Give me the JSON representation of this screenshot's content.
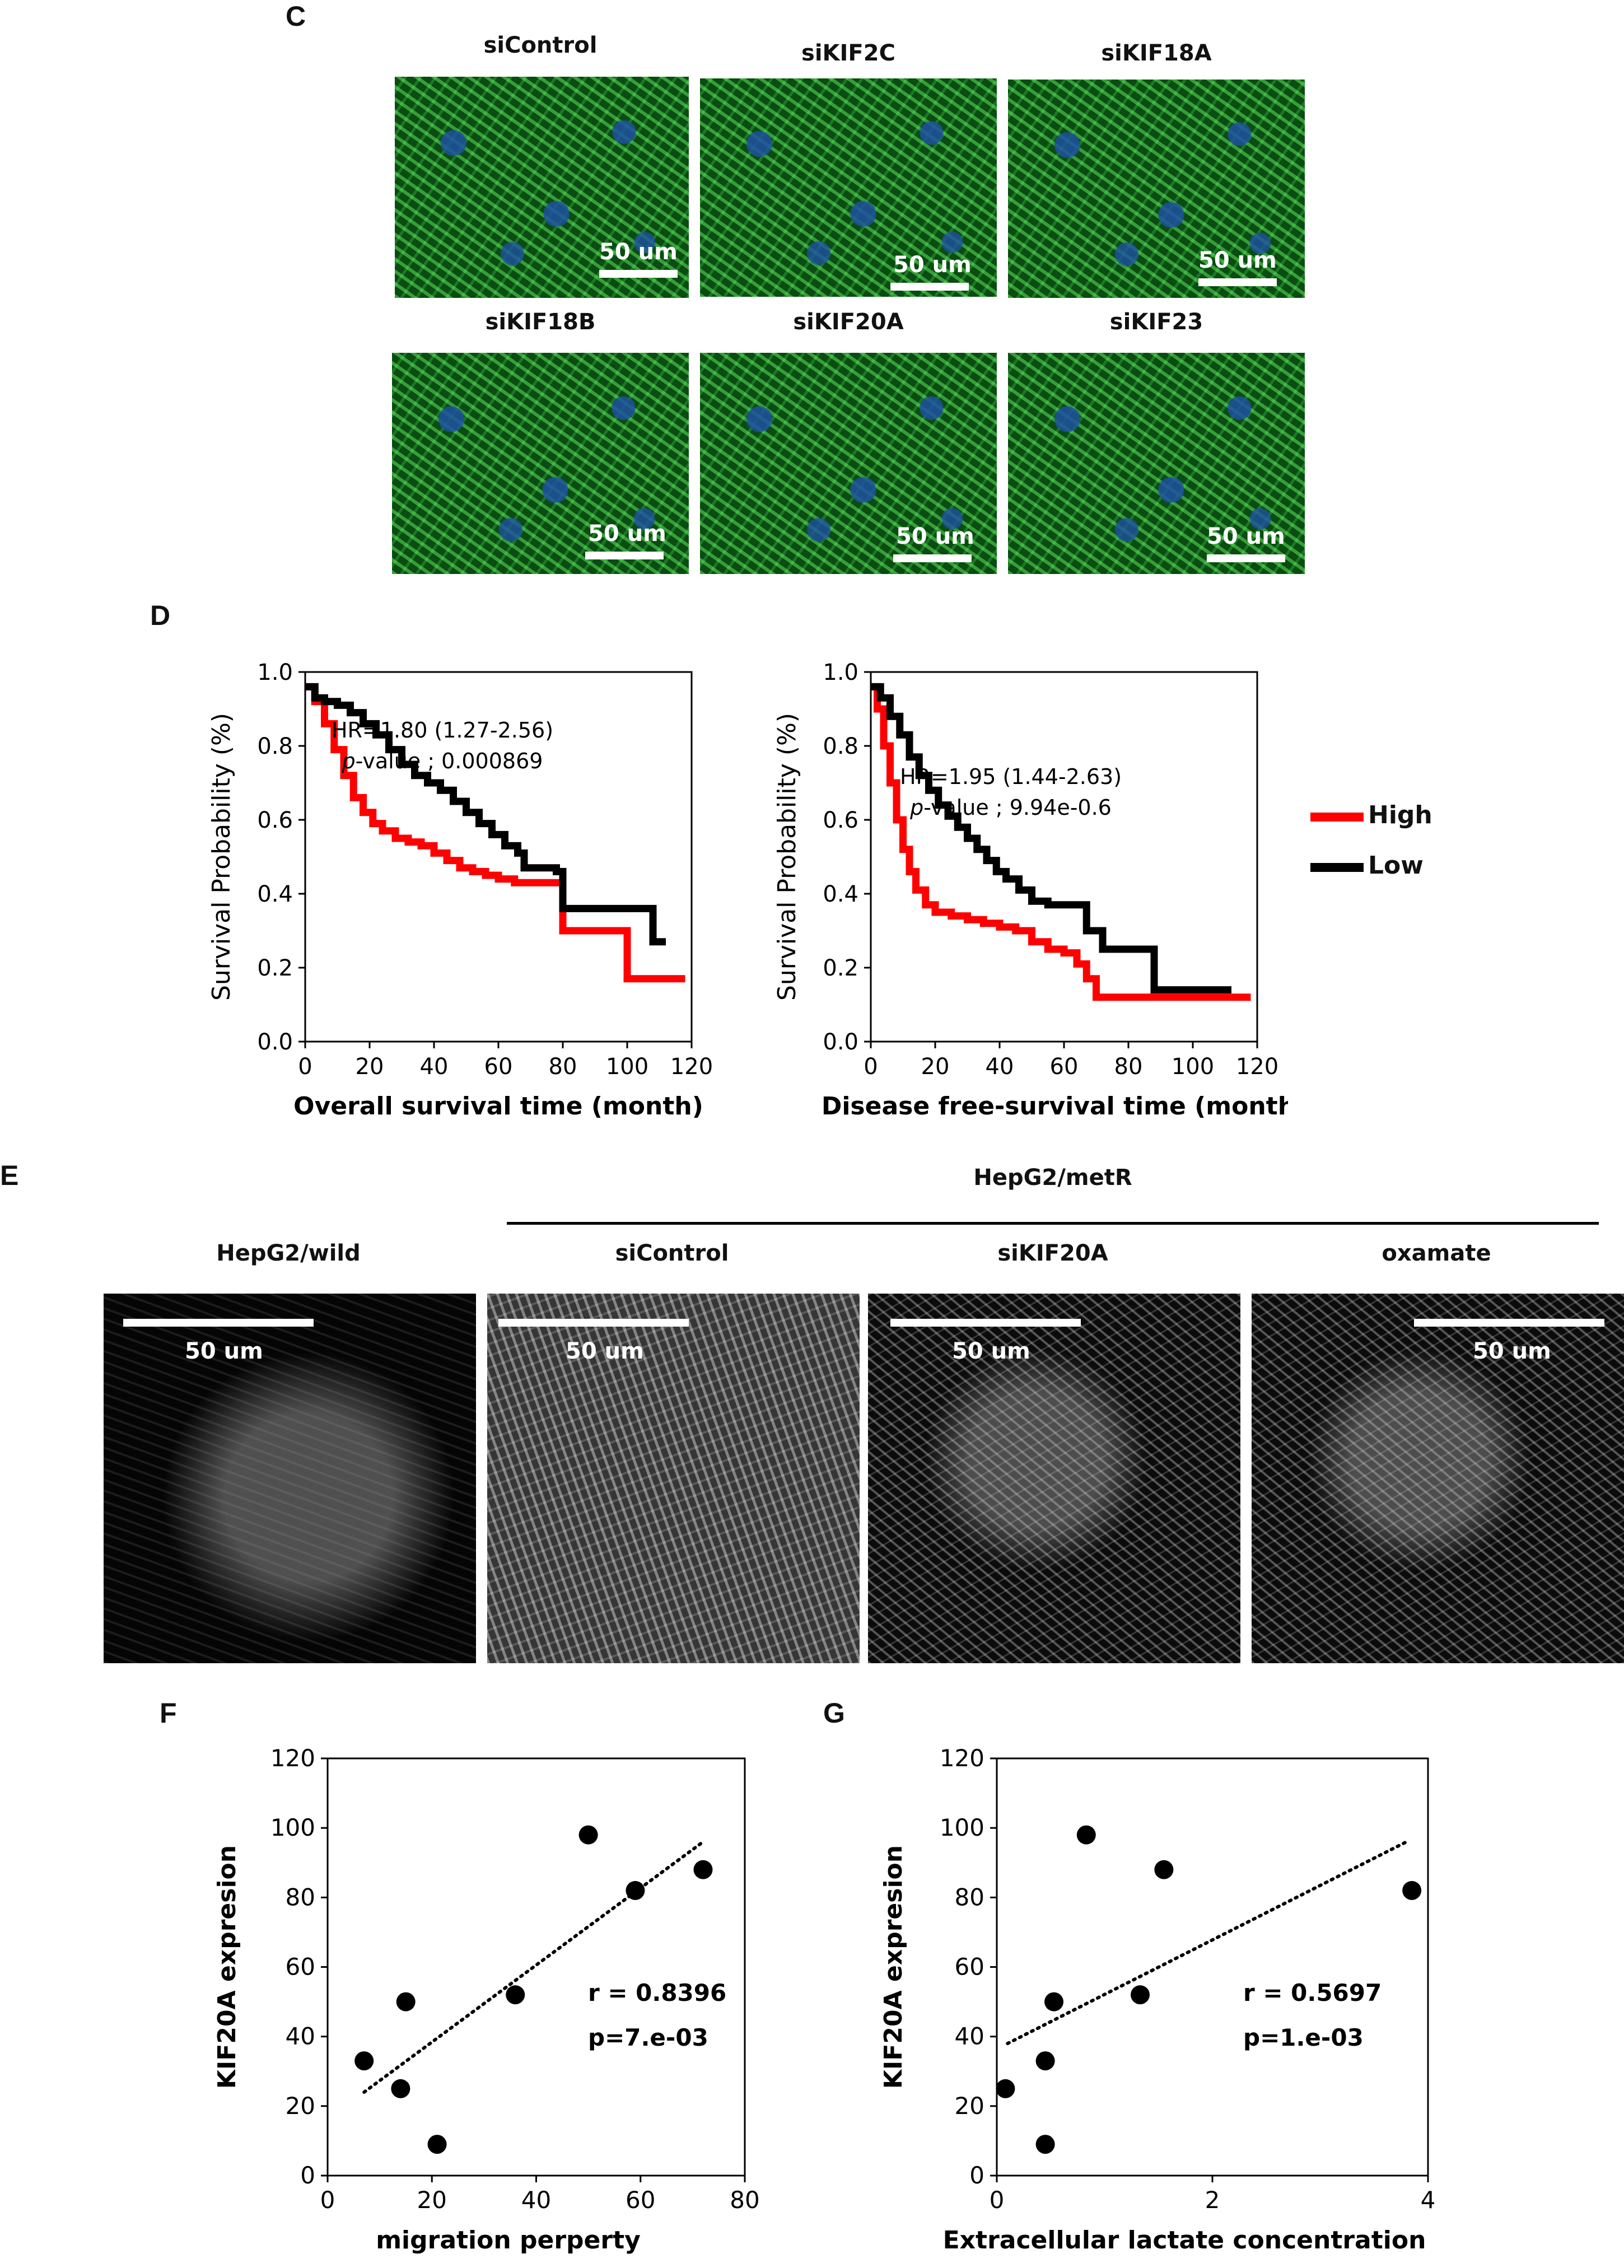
{
  "panels": {
    "c": {
      "letter": "C",
      "labels": [
        "siControl",
        "siKIF2C",
        "siKIF18A",
        "siKIF18B",
        "siKIF20A",
        "siKIF23"
      ],
      "scalebar_text": "50 um"
    },
    "d": {
      "letter": "D",
      "legend": [
        {
          "label": "High",
          "color": "#ff0000"
        },
        {
          "label": "Low",
          "color": "#000000"
        }
      ]
    },
    "e": {
      "letter": "E",
      "group_label": "HepG2/metR",
      "labels": [
        "HepG2/wild",
        "siControl",
        "siKIF20A",
        "oxamate"
      ],
      "scalebar_text": "50 um"
    },
    "f": {
      "letter": "F"
    },
    "g": {
      "letter": "G"
    }
  },
  "chart_data": [
    {
      "id": "d-left",
      "type": "line",
      "xlabel": "Overall survival time (month)",
      "ylabel": "Survival Probability (%)",
      "xlim": [
        0,
        120
      ],
      "ylim": [
        0.0,
        1.0
      ],
      "xticks": [
        0,
        20,
        40,
        60,
        80,
        100,
        120
      ],
      "yticks": [
        0.0,
        0.2,
        0.4,
        0.6,
        0.8,
        1.0
      ],
      "annotation": [
        "HR=1.80 (1.27-2.56)",
        "p-value ; 0.000869"
      ],
      "series": [
        {
          "name": "High",
          "color": "#ff0000",
          "points": [
            [
              0,
              0.96
            ],
            [
              3,
              0.92
            ],
            [
              6,
              0.86
            ],
            [
              9,
              0.79
            ],
            [
              12,
              0.72
            ],
            [
              15,
              0.66
            ],
            [
              18,
              0.62
            ],
            [
              21,
              0.59
            ],
            [
              24,
              0.57
            ],
            [
              28,
              0.55
            ],
            [
              32,
              0.54
            ],
            [
              36,
              0.53
            ],
            [
              40,
              0.51
            ],
            [
              44,
              0.49
            ],
            [
              48,
              0.47
            ],
            [
              52,
              0.46
            ],
            [
              56,
              0.45
            ],
            [
              60,
              0.44
            ],
            [
              65,
              0.43
            ],
            [
              70,
              0.43
            ],
            [
              74,
              0.43
            ],
            [
              78,
              0.43
            ],
            [
              80,
              0.3
            ],
            [
              95,
              0.3
            ],
            [
              100,
              0.17
            ],
            [
              118,
              0.17
            ]
          ]
        },
        {
          "name": "Low",
          "color": "#000000",
          "points": [
            [
              0,
              0.96
            ],
            [
              3,
              0.93
            ],
            [
              6,
              0.92
            ],
            [
              10,
              0.91
            ],
            [
              14,
              0.89
            ],
            [
              18,
              0.86
            ],
            [
              22,
              0.83
            ],
            [
              26,
              0.79
            ],
            [
              30,
              0.75
            ],
            [
              34,
              0.72
            ],
            [
              38,
              0.7
            ],
            [
              42,
              0.68
            ],
            [
              46,
              0.65
            ],
            [
              50,
              0.62
            ],
            [
              54,
              0.59
            ],
            [
              58,
              0.56
            ],
            [
              62,
              0.53
            ],
            [
              66,
              0.51
            ],
            [
              68,
              0.47
            ],
            [
              74,
              0.47
            ],
            [
              78,
              0.46
            ],
            [
              80,
              0.36
            ],
            [
              105,
              0.36
            ],
            [
              108,
              0.27
            ],
            [
              112,
              0.27
            ]
          ]
        }
      ]
    },
    {
      "id": "d-right",
      "type": "line",
      "xlabel": "Disease free-survival time (month)",
      "ylabel": "Survival Probability (%)",
      "xlim": [
        0,
        120
      ],
      "ylim": [
        0.0,
        1.0
      ],
      "xticks": [
        0,
        20,
        40,
        60,
        80,
        100,
        120
      ],
      "yticks": [
        0.0,
        0.2,
        0.4,
        0.6,
        0.8,
        1.0
      ],
      "annotation": [
        "HR=1.95 (1.44-2.63)",
        "p-value ; 9.94e-0.6"
      ],
      "series": [
        {
          "name": "High",
          "color": "#ff0000",
          "points": [
            [
              0,
              0.96
            ],
            [
              2,
              0.9
            ],
            [
              4,
              0.8
            ],
            [
              6,
              0.7
            ],
            [
              8,
              0.6
            ],
            [
              10,
              0.52
            ],
            [
              12,
              0.46
            ],
            [
              14,
              0.41
            ],
            [
              17,
              0.37
            ],
            [
              20,
              0.35
            ],
            [
              25,
              0.34
            ],
            [
              30,
              0.33
            ],
            [
              35,
              0.32
            ],
            [
              40,
              0.31
            ],
            [
              45,
              0.3
            ],
            [
              50,
              0.27
            ],
            [
              55,
              0.25
            ],
            [
              60,
              0.24
            ],
            [
              64,
              0.21
            ],
            [
              67,
              0.17
            ],
            [
              70,
              0.12
            ],
            [
              118,
              0.12
            ]
          ]
        },
        {
          "name": "Low",
          "color": "#000000",
          "points": [
            [
              0,
              0.96
            ],
            [
              3,
              0.93
            ],
            [
              6,
              0.88
            ],
            [
              9,
              0.83
            ],
            [
              12,
              0.77
            ],
            [
              15,
              0.72
            ],
            [
              18,
              0.68
            ],
            [
              21,
              0.64
            ],
            [
              24,
              0.61
            ],
            [
              27,
              0.58
            ],
            [
              30,
              0.55
            ],
            [
              33,
              0.52
            ],
            [
              36,
              0.49
            ],
            [
              39,
              0.46
            ],
            [
              42,
              0.44
            ],
            [
              46,
              0.41
            ],
            [
              50,
              0.38
            ],
            [
              55,
              0.37
            ],
            [
              60,
              0.37
            ],
            [
              64,
              0.37
            ],
            [
              67,
              0.3
            ],
            [
              72,
              0.25
            ],
            [
              86,
              0.25
            ],
            [
              88,
              0.14
            ],
            [
              112,
              0.14
            ]
          ]
        }
      ]
    },
    {
      "id": "f",
      "type": "scatter",
      "xlabel": "migration perperty",
      "ylabel": "KIF20A expresion",
      "xlim": [
        0,
        80
      ],
      "ylim": [
        0,
        120
      ],
      "xticks": [
        0,
        20,
        40,
        60,
        80
      ],
      "yticks": [
        0,
        20,
        40,
        60,
        80,
        100,
        120
      ],
      "annotation": [
        "r = 0.8396",
        "p=7.e-03"
      ],
      "points": [
        [
          7,
          33
        ],
        [
          14,
          25
        ],
        [
          15,
          50
        ],
        [
          21,
          9
        ],
        [
          36,
          52
        ],
        [
          50,
          98
        ],
        [
          59,
          82
        ],
        [
          72,
          88
        ]
      ],
      "trendline": [
        [
          7,
          24
        ],
        [
          72,
          96
        ]
      ]
    },
    {
      "id": "g",
      "type": "scatter",
      "xlabel": "Extracellular lactate concentration",
      "ylabel": "KIF20A expresion",
      "xlim": [
        0,
        4
      ],
      "ylim": [
        0,
        120
      ],
      "xticks": [
        0,
        2,
        4
      ],
      "yticks": [
        0,
        20,
        40,
        60,
        80,
        100,
        120
      ],
      "annotation": [
        "r = 0.5697",
        "p=1.e-03"
      ],
      "points": [
        [
          0.08,
          25
        ],
        [
          0.45,
          33
        ],
        [
          0.45,
          9
        ],
        [
          0.53,
          50
        ],
        [
          0.83,
          98
        ],
        [
          1.33,
          52
        ],
        [
          1.55,
          88
        ],
        [
          3.85,
          82
        ]
      ],
      "trendline": [
        [
          0.1,
          38
        ],
        [
          3.8,
          96
        ]
      ]
    }
  ]
}
